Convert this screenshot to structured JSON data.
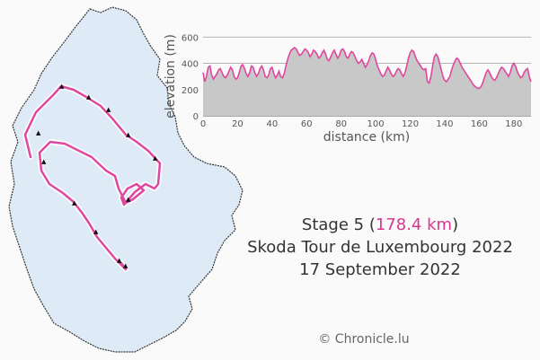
{
  "chart_data": {
    "type": "area",
    "xlabel": "distance (km)",
    "ylabel": "elevation (m)",
    "xlim": [
      0,
      190
    ],
    "ylim": [
      0,
      650
    ],
    "xticks": [
      0,
      20,
      40,
      60,
      80,
      100,
      120,
      140,
      160,
      180
    ],
    "yticks": [
      0,
      200,
      400,
      600
    ],
    "grid": true,
    "series": [
      {
        "x": [
          0,
          1,
          2,
          3,
          4,
          5,
          6,
          7,
          8,
          9,
          10,
          11,
          12,
          13,
          14,
          15,
          16,
          17,
          18,
          19,
          20,
          21,
          22,
          23,
          24,
          25,
          26,
          27,
          28,
          29,
          30,
          31,
          32,
          33,
          34,
          35,
          36,
          37,
          38,
          39,
          40,
          41,
          42,
          43,
          44,
          45,
          46,
          47,
          48,
          49,
          50,
          51,
          52,
          53,
          54,
          55,
          56,
          57,
          58,
          59,
          60,
          61,
          62,
          63,
          64,
          65,
          66,
          67,
          68,
          69,
          70,
          71,
          72,
          73,
          74,
          75,
          76,
          77,
          78,
          79,
          80,
          81,
          82,
          83,
          84,
          85,
          86,
          87,
          88,
          89,
          90,
          91,
          92,
          93,
          94,
          95,
          96,
          97,
          98,
          99,
          100,
          101,
          102,
          103,
          104,
          105,
          106,
          107,
          108,
          109,
          110,
          111,
          112,
          113,
          114,
          115,
          116,
          117,
          118,
          119,
          120,
          121,
          122,
          123,
          124,
          125,
          126,
          127,
          128,
          129,
          130,
          131,
          132,
          133,
          134,
          135,
          136,
          137,
          138,
          139,
          140,
          141,
          142,
          143,
          144,
          145,
          146,
          147,
          148,
          149,
          150,
          151,
          152,
          153,
          154,
          155,
          156,
          157,
          158,
          159,
          160,
          161,
          162,
          163,
          164,
          165,
          166,
          167,
          168,
          169,
          170,
          171,
          172,
          173,
          174,
          175,
          176,
          177,
          178,
          179,
          180,
          181,
          182,
          183,
          184,
          185,
          186,
          187,
          188,
          189,
          190
        ],
        "y": [
          330,
          260,
          300,
          370,
          380,
          310,
          280,
          300,
          320,
          350,
          360,
          330,
          300,
          290,
          310,
          340,
          370,
          350,
          300,
          280,
          290,
          330,
          380,
          390,
          360,
          320,
          300,
          330,
          380,
          370,
          330,
          300,
          320,
          360,
          380,
          350,
          300,
          290,
          310,
          360,
          370,
          320,
          290,
          310,
          340,
          300,
          290,
          320,
          380,
          430,
          470,
          500,
          510,
          520,
          510,
          480,
          460,
          470,
          490,
          510,
          500,
          480,
          450,
          470,
          500,
          490,
          470,
          440,
          450,
          480,
          500,
          470,
          430,
          420,
          450,
          480,
          500,
          470,
          440,
          460,
          500,
          510,
          490,
          450,
          440,
          470,
          490,
          480,
          450,
          420,
          400,
          410,
          430,
          400,
          370,
          390,
          420,
          460,
          480,
          470,
          430,
          380,
          350,
          320,
          300,
          310,
          340,
          370,
          350,
          320,
          300,
          310,
          340,
          360,
          350,
          320,
          300,
          330,
          380,
          440,
          480,
          500,
          490,
          450,
          420,
          400,
          380,
          360,
          350,
          360,
          260,
          250,
          300,
          380,
          450,
          470,
          450,
          400,
          350,
          300,
          270,
          260,
          280,
          300,
          350,
          390,
          420,
          440,
          430,
          400,
          370,
          350,
          330,
          310,
          290,
          270,
          250,
          230,
          220,
          210,
          210,
          220,
          250,
          290,
          330,
          350,
          330,
          300,
          280,
          270,
          290,
          320,
          350,
          370,
          360,
          340,
          320,
          300,
          330,
          380,
          400,
          380,
          340,
          310,
          290,
          300,
          330,
          350,
          360,
          300,
          260
        ]
      }
    ],
    "fill_color": "#c8c8c8",
    "line_color": "#e0479e"
  },
  "caption": {
    "prefix": "Stage 5 (",
    "distance": "178.4 km",
    "suffix": ")",
    "line2": "Skoda Tour de Luxembourg 2022",
    "line3": "17 September 2022"
  },
  "credit": "© Chronicle.lu",
  "colors": {
    "map_fill": "#deebf7",
    "map_outline": "#333333",
    "route": "#e0479e",
    "route_glow": "#ffffff"
  }
}
